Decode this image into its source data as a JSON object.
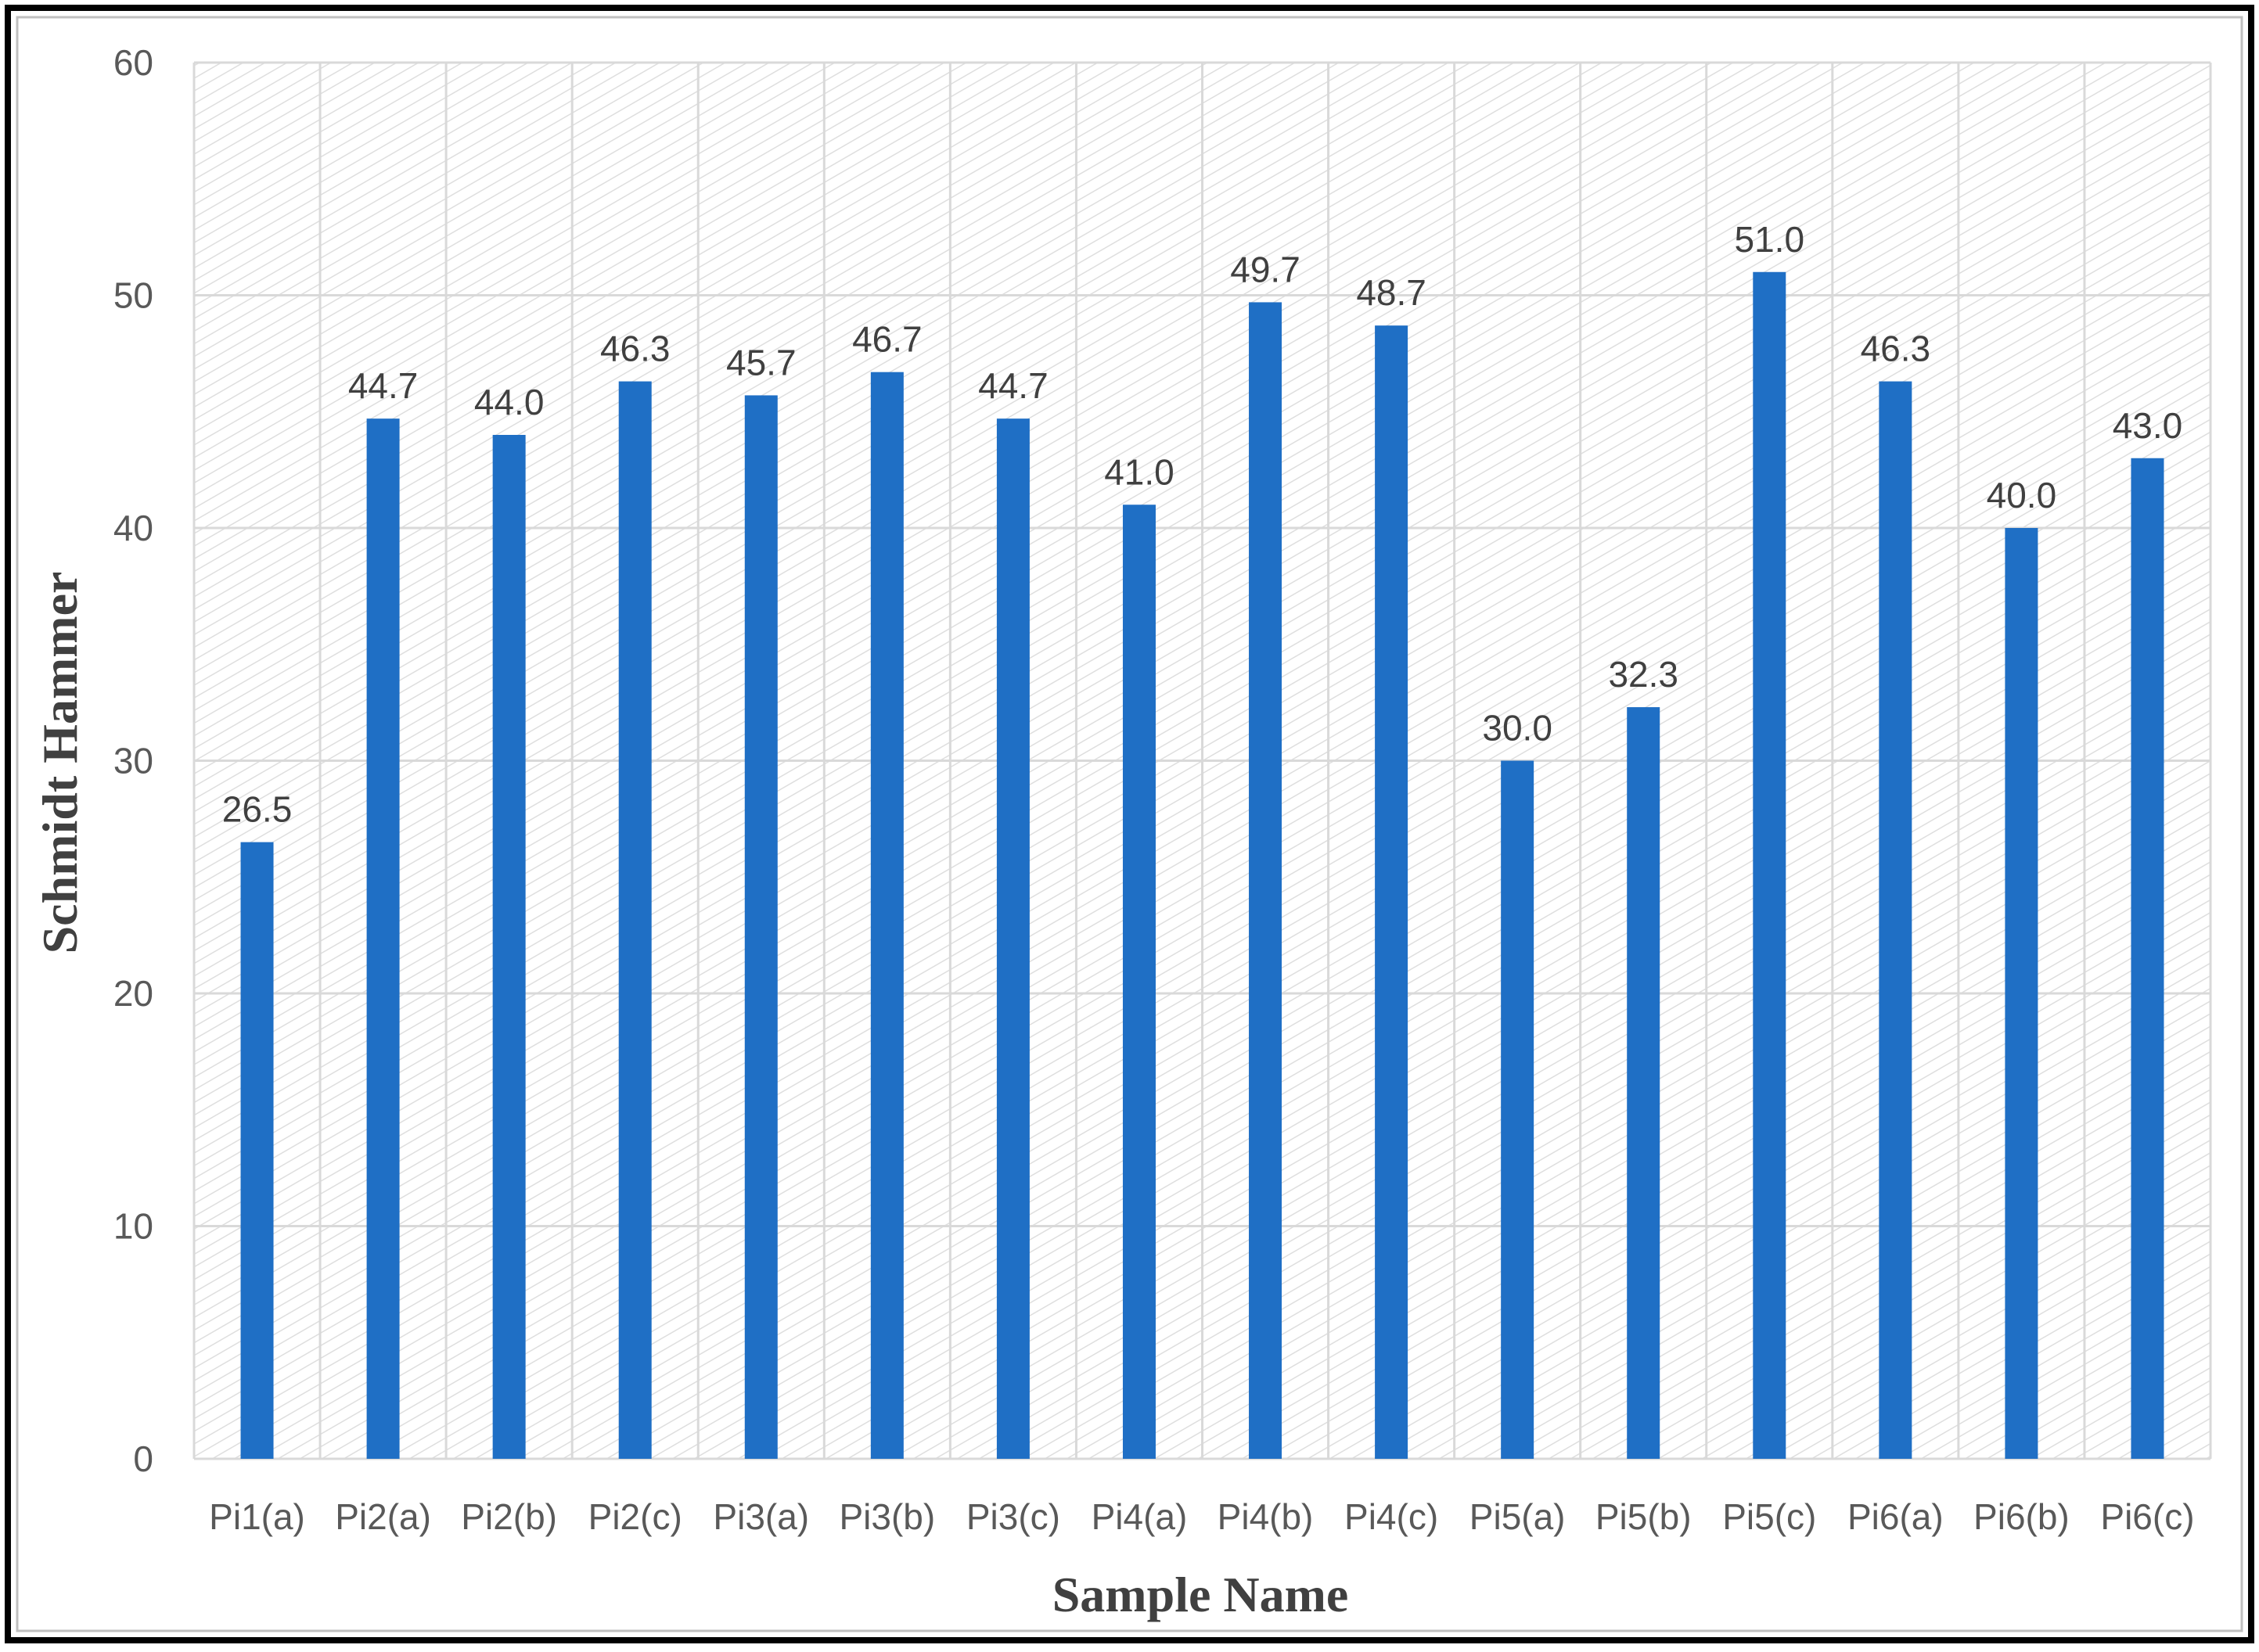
{
  "chart_data": {
    "type": "bar",
    "title": "",
    "xlabel": "Sample Name",
    "ylabel": "Schmidt Hammer",
    "categories": [
      "Pi1(a)",
      "Pi2(a)",
      "Pi2(b)",
      "Pi2(c)",
      "Pi3(a)",
      "Pi3(b)",
      "Pi3(c)",
      "Pi4(a)",
      "Pi4(b)",
      "Pi4(c)",
      "Pi5(a)",
      "Pi5(b)",
      "Pi5(c)",
      "Pi6(a)",
      "Pi6(b)",
      "Pi6(c)"
    ],
    "values": [
      26.5,
      44.7,
      44.0,
      46.3,
      45.7,
      46.7,
      44.7,
      41.0,
      49.7,
      48.7,
      30.0,
      32.3,
      51.0,
      46.3,
      40.0,
      43.0
    ],
    "data_labels": [
      "26.5",
      "44.7",
      "44.0",
      "46.3",
      "45.7",
      "46.7",
      "44.7",
      "41.0",
      "49.7",
      "48.7",
      "30.0",
      "32.3",
      "51.0",
      "46.3",
      "40.0",
      "43.0"
    ],
    "ylim": [
      0,
      60
    ],
    "yticks": [
      0,
      10,
      20,
      30,
      40,
      50,
      60
    ],
    "grid": true,
    "legend": "none",
    "colors": {
      "bar": "#1f6fc5",
      "grid": "#d9d9d9",
      "hatch": "#dcdcdc",
      "frame": "#000000"
    }
  }
}
